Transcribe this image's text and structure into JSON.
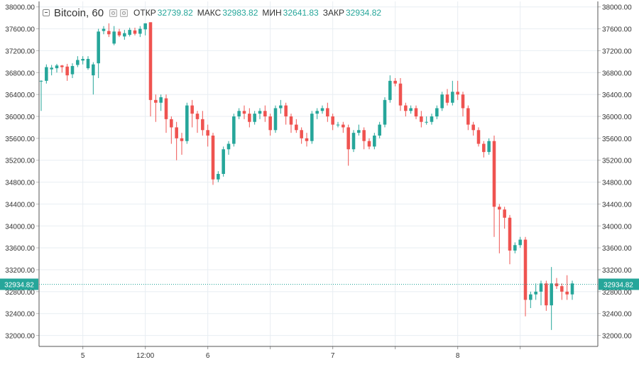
{
  "header": {
    "symbol": "Bitcoin, 60",
    "open_label": "ОТКР",
    "open_value": "32739.82",
    "high_label": "МАКС",
    "high_value": "32983.82",
    "low_label": "МИН",
    "low_value": "32641.83",
    "close_label": "ЗАКР",
    "close_value": "32934.82"
  },
  "colors": {
    "up": "#26a69a",
    "down": "#ef5350",
    "grid": "#e8eef2",
    "axis_text": "#333333",
    "price_line": "#26a69a",
    "price_label_bg": "#26a69a"
  },
  "chart_data": {
    "type": "candlestick",
    "ylim": [
      31800,
      38100
    ],
    "y_ticks": [
      "32000.00",
      "32400.00",
      "32800.00",
      "33200.00",
      "33600.00",
      "34000.00",
      "34400.00",
      "34800.00",
      "35200.00",
      "35600.00",
      "36000.00",
      "36400.00",
      "36800.00",
      "37200.00",
      "37600.00",
      "38000.00"
    ],
    "x_ticks": [
      {
        "label": "5",
        "index": 8
      },
      {
        "label": "12:00",
        "index": 20
      },
      {
        "label": "6",
        "index": 32
      },
      {
        "label": "",
        "index": 44
      },
      {
        "label": "7",
        "index": 56
      },
      {
        "label": "",
        "index": 68
      },
      {
        "label": "8",
        "index": 80
      },
      {
        "label": "",
        "index": 92
      }
    ],
    "last_price": 32934.82,
    "last_price_label": "32934.82",
    "candles": [
      [
        36650,
        36650,
        36100,
        36660
      ],
      [
        36650,
        36900,
        36600,
        36950
      ],
      [
        36860,
        36890,
        36750,
        36940
      ],
      [
        36880,
        36930,
        36800,
        36960
      ],
      [
        36930,
        36900,
        36800,
        36940
      ],
      [
        36910,
        36750,
        36650,
        36960
      ],
      [
        36770,
        36920,
        36700,
        36970
      ],
      [
        36940,
        37030,
        36900,
        37100
      ],
      [
        37020,
        37050,
        36950,
        37100
      ],
      [
        36880,
        37050,
        36850,
        37100
      ],
      [
        36750,
        36950,
        36400,
        36990
      ],
      [
        36970,
        37550,
        36700,
        37600
      ],
      [
        37560,
        37600,
        37500,
        37650
      ],
      [
        37560,
        37500,
        37450,
        37700
      ],
      [
        37330,
        37550,
        37300,
        37650
      ],
      [
        37550,
        37480,
        37450,
        37600
      ],
      [
        37460,
        37520,
        37400,
        37580
      ],
      [
        37490,
        37580,
        37460,
        37620
      ],
      [
        37570,
        37510,
        37480,
        37620
      ],
      [
        37510,
        37600,
        37450,
        37650
      ],
      [
        37590,
        37700,
        37480,
        37700
      ],
      [
        37720,
        36300,
        36000,
        37720
      ],
      [
        36300,
        36250,
        35900,
        36400
      ],
      [
        36250,
        36350,
        36100,
        36400
      ],
      [
        36330,
        35950,
        35700,
        36400
      ],
      [
        35950,
        35800,
        35500,
        36000
      ],
      [
        35800,
        35600,
        35200,
        35900
      ],
      [
        35600,
        35550,
        35300,
        35700
      ],
      [
        35550,
        36200,
        35500,
        36250
      ],
      [
        36200,
        36050,
        35800,
        36300
      ],
      [
        36050,
        35950,
        35700,
        36100
      ],
      [
        35950,
        35750,
        35650,
        36100
      ],
      [
        35750,
        35650,
        35450,
        35850
      ],
      [
        35650,
        34850,
        34750,
        35700
      ],
      [
        34850,
        34950,
        34800,
        35000
      ],
      [
        34950,
        35400,
        34900,
        35450
      ],
      [
        35400,
        35500,
        35300,
        35550
      ],
      [
        35500,
        36000,
        35450,
        36050
      ],
      [
        36000,
        36100,
        35950,
        36150
      ],
      [
        36100,
        36050,
        35950,
        36200
      ],
      [
        36050,
        35900,
        35800,
        36150
      ],
      [
        35900,
        36050,
        35850,
        36100
      ],
      [
        36050,
        36100,
        35950,
        36150
      ],
      [
        36100,
        36000,
        35900,
        36200
      ],
      [
        36000,
        35750,
        35650,
        36050
      ],
      [
        35750,
        36150,
        35700,
        36200
      ],
      [
        36150,
        36200,
        36050,
        36300
      ],
      [
        36200,
        36000,
        35850,
        36250
      ],
      [
        36000,
        35850,
        35700,
        36050
      ],
      [
        35850,
        35750,
        35700,
        35950
      ],
      [
        35750,
        35600,
        35500,
        35800
      ],
      [
        35600,
        35550,
        35450,
        35700
      ],
      [
        35550,
        36050,
        35500,
        36100
      ],
      [
        36050,
        36100,
        35950,
        36150
      ],
      [
        36100,
        36150,
        36050,
        36200
      ],
      [
        36150,
        36000,
        35900,
        36250
      ],
      [
        36000,
        35850,
        35750,
        36050
      ],
      [
        35850,
        35850,
        35800,
        35900
      ],
      [
        35850,
        35800,
        35700,
        35900
      ],
      [
        35800,
        35400,
        35100,
        35850
      ],
      [
        35400,
        35700,
        35350,
        35750
      ],
      [
        35700,
        35750,
        35650,
        35850
      ],
      [
        35750,
        35550,
        35400,
        35800
      ],
      [
        35550,
        35450,
        35400,
        35600
      ],
      [
        35450,
        35650,
        35400,
        35700
      ],
      [
        35650,
        35850,
        35600,
        35900
      ],
      [
        35850,
        36300,
        35800,
        36350
      ],
      [
        36300,
        36650,
        36250,
        36750
      ],
      [
        36650,
        36600,
        36550,
        36700
      ],
      [
        36600,
        36200,
        36100,
        36700
      ],
      [
        36200,
        36100,
        36000,
        36250
      ],
      [
        36100,
        36150,
        36050,
        36200
      ],
      [
        36150,
        36000,
        35950,
        36200
      ],
      [
        36000,
        35900,
        35800,
        36100
      ],
      [
        35900,
        35900,
        35850,
        36000
      ],
      [
        35900,
        36000,
        35850,
        36050
      ],
      [
        36000,
        36150,
        35950,
        36200
      ],
      [
        36150,
        36400,
        36100,
        36450
      ],
      [
        36400,
        36250,
        36200,
        36500
      ],
      [
        36250,
        36450,
        36200,
        36650
      ],
      [
        36450,
        36400,
        36300,
        36650
      ],
      [
        36400,
        36150,
        36000,
        36450
      ],
      [
        36150,
        35850,
        35750,
        36200
      ],
      [
        35850,
        35750,
        35650,
        35900
      ],
      [
        35750,
        35500,
        35450,
        35800
      ],
      [
        35500,
        35350,
        35250,
        35550
      ],
      [
        35350,
        35550,
        35300,
        35600
      ],
      [
        35550,
        34350,
        33800,
        35650
      ],
      [
        34350,
        34300,
        33500,
        34400
      ],
      [
        34300,
        34150,
        33950,
        34350
      ],
      [
        34150,
        33550,
        33300,
        34200
      ],
      [
        33550,
        33650,
        33500,
        33700
      ],
      [
        33650,
        33750,
        33600,
        33800
      ],
      [
        33750,
        32650,
        32350,
        33800
      ],
      [
        32650,
        32750,
        32500,
        32800
      ],
      [
        32750,
        32800,
        32650,
        32950
      ],
      [
        32800,
        32950,
        32550,
        33000
      ],
      [
        32950,
        32550,
        32450,
        33000
      ],
      [
        32550,
        32950,
        32100,
        33250
      ],
      [
        32950,
        32900,
        32850,
        33050
      ],
      [
        32900,
        32800,
        32650,
        32950
      ],
      [
        32800,
        32750,
        32650,
        33100
      ],
      [
        32750,
        32950,
        32650,
        33000
      ]
    ]
  }
}
